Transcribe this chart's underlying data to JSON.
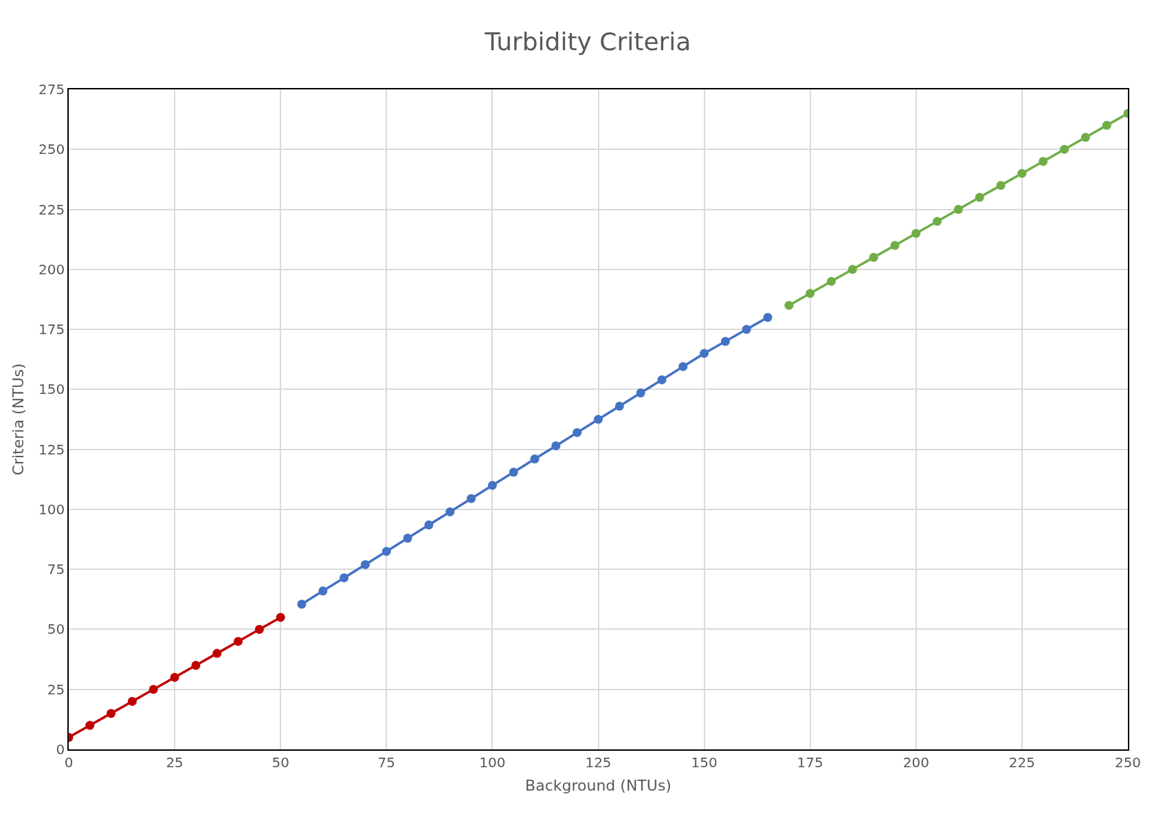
{
  "chart_data": {
    "type": "line",
    "title": "Turbidity Criteria",
    "xlabel": "Background (NTUs)",
    "ylabel": "Criteria (NTUs)",
    "series": [
      {
        "color": "#c00000",
        "x": [
          0,
          5,
          10,
          15,
          20,
          25,
          30,
          35,
          40,
          45,
          50
        ],
        "values": [
          5,
          10,
          15,
          20,
          25,
          30,
          35,
          40,
          45,
          50,
          55
        ]
      },
      {
        "color": "#4472c4",
        "x": [
          55,
          60,
          65,
          70,
          75,
          80,
          85,
          90,
          95,
          100,
          105,
          110,
          115,
          120,
          125,
          130,
          135,
          140,
          145,
          150,
          155,
          160,
          165
        ],
        "values": [
          60.5,
          66,
          71.5,
          77,
          82.5,
          88,
          93.5,
          99,
          104.5,
          110,
          115.5,
          121,
          126.5,
          132,
          137.5,
          143,
          148.5,
          154,
          159.5,
          165,
          170,
          175,
          180
        ]
      },
      {
        "color": "#70ad47",
        "x": [
          170,
          175,
          180,
          185,
          190,
          195,
          200,
          205,
          210,
          215,
          220,
          225,
          230,
          235,
          240,
          245,
          250
        ],
        "values": [
          185,
          190,
          195,
          200,
          205,
          210,
          215,
          220,
          225,
          230,
          235,
          240,
          245,
          250,
          255,
          260,
          265
        ]
      }
    ],
    "xlim": [
      0,
      250
    ],
    "xticks": [
      0,
      25,
      50,
      75,
      100,
      125,
      150,
      175,
      200,
      225,
      250
    ],
    "ylim": [
      0,
      275
    ],
    "yticks": [
      0,
      25,
      50,
      75,
      100,
      125,
      150,
      175,
      200,
      225,
      250,
      275
    ],
    "grid": true,
    "marker": "circle",
    "line_style": "solid"
  }
}
